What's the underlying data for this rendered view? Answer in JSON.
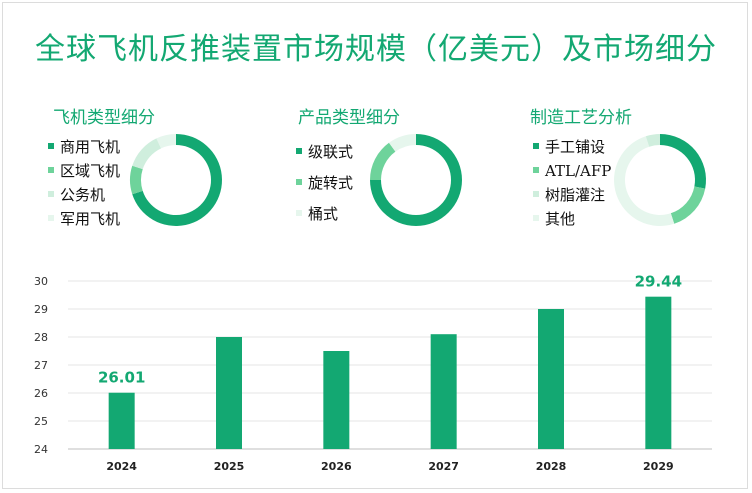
{
  "title": "全球飞机反推装置市场规模（亿美元）及市场细分",
  "colors": {
    "primary": "#13a872",
    "secondary": "#6ed39b",
    "light": "#cfeedd",
    "lighter": "#e6f6ed"
  },
  "segments": [
    {
      "title": "飞机类型细分",
      "items": [
        "商用飞机",
        "区域飞机",
        "公务机",
        "军用飞机"
      ],
      "shares": [
        0.7,
        0.1,
        0.13,
        0.07
      ]
    },
    {
      "title": "产品类型细分",
      "items": [
        "级联式",
        "旋转式",
        "桶式"
      ],
      "shares": [
        0.75,
        0.15,
        0.1
      ]
    },
    {
      "title": "制造工艺分析",
      "items": [
        "手工铺设",
        "ATL/AFP",
        "树脂灌注",
        "其他"
      ],
      "shares": [
        0.28,
        0.17,
        0.5,
        0.05
      ]
    }
  ],
  "chart_data": {
    "type": "bar",
    "categories": [
      "2024",
      "2025",
      "2026",
      "2027",
      "2028",
      "2029"
    ],
    "values": [
      26.01,
      28.0,
      27.5,
      28.1,
      29.0,
      29.44
    ],
    "data_labels": [
      "26.01",
      "",
      "",
      "",
      "",
      "29.44"
    ],
    "ylim": [
      24,
      30
    ],
    "yticks": [
      "24",
      "25",
      "26",
      "27",
      "28",
      "29",
      "30"
    ],
    "grid": true,
    "title": "",
    "xlabel": "",
    "ylabel": ""
  }
}
